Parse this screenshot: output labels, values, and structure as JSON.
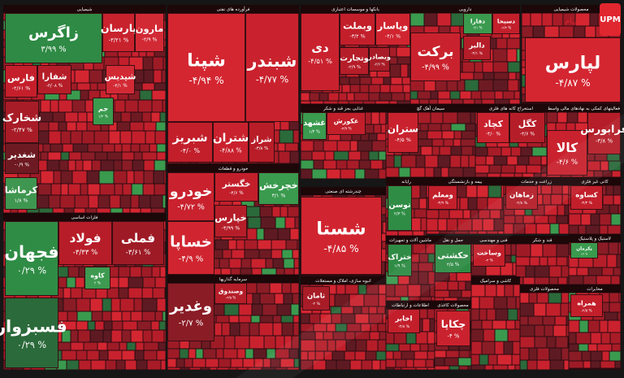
{
  "watermark": {
    "logo": "UPM",
    "text": "یوپی‌ام"
  },
  "sectors": [
    {
      "title": "شیمیایی",
      "tiles": [
        {
          "name": "زاگرس",
          "change": "۳/۹۹ %",
          "color": "#2e8a44"
        },
        {
          "name": "پارسان",
          "change": "-۳/۲۱ %",
          "color": "#c8222d"
        },
        {
          "name": "مارون",
          "change": "-۲/۹ %",
          "color": "#d22a35"
        },
        {
          "name": "فارس",
          "change": "-۲/۶۱ %",
          "color": "#c41f2b"
        },
        {
          "name": "شفارا",
          "change": "-۳/۰۸ %",
          "color": "#b51e29"
        },
        {
          "name": "شپدیس",
          "change": "-۴/۱ %",
          "color": "#d22a35"
        },
        {
          "name": "شخارک",
          "change": "-۲/۴۷ %",
          "color": "#a81c27"
        },
        {
          "name": "جم",
          "change": "۱/۲ %",
          "color": "#3a9a4e"
        },
        {
          "name": "شغدیر",
          "change": "-۰/۹ %",
          "color": "#6e1a22"
        },
        {
          "name": "کرماشا",
          "change": "۱/۸ %",
          "color": "#3f9650"
        }
      ]
    },
    {
      "title": "فلزات اساسی",
      "tiles": [
        {
          "name": "فجهان",
          "change": "۰/۲۹ %",
          "color": "#2f8c45"
        },
        {
          "name": "فسبزوار",
          "change": "۰/۲۹ %",
          "color": "#2b6a3a"
        },
        {
          "name": "فولاد",
          "change": "-۳/۳۳ %",
          "color": "#b71d28"
        },
        {
          "name": "فملی",
          "change": "-۳/۶۱ %",
          "color": "#9e1b26"
        },
        {
          "name": "کاوه",
          "change": "۲ %",
          "color": "#3d9a50"
        }
      ]
    },
    {
      "title": "فرآورده های نفتی",
      "tiles": [
        {
          "name": "شپنا",
          "change": "-۴/۹۴ %",
          "color": "#d42631"
        },
        {
          "name": "شبندر",
          "change": "-۴/۷۷ %",
          "color": "#c9222e"
        },
        {
          "name": "شبریز",
          "change": "-۴/۰ %",
          "color": "#c21f2b"
        },
        {
          "name": "شتران",
          "change": "-۴/۸۸ %",
          "color": "#c9222e"
        },
        {
          "name": "شراز",
          "change": "-۳/۸ %",
          "color": "#b81d28"
        }
      ]
    },
    {
      "title": "خودرو و قطعات",
      "tiles": [
        {
          "name": "خودرو",
          "change": "-۴/۷۲ %",
          "color": "#c9222e"
        },
        {
          "name": "خساپا",
          "change": "-۴/۹ %",
          "color": "#d02530"
        },
        {
          "name": "خگستر",
          "change": "-۴/۶ %",
          "color": "#c21f2b"
        },
        {
          "name": "خچرخش",
          "change": "۳/۱ %",
          "color": "#3a9a4e"
        },
        {
          "name": "خپارس",
          "change": "-۴/۹۹ %",
          "color": "#b51e29"
        }
      ]
    },
    {
      "title": "سرمایه گذاریها",
      "tiles": [
        {
          "name": "وغدیر",
          "change": "-۲/۷ %",
          "color": "#8a1c26"
        },
        {
          "name": "وصندوق",
          "change": "-۳/۵ %",
          "color": "#b51e29"
        }
      ]
    },
    {
      "title": "بانکها و موسسات اعتباری",
      "tiles": [
        {
          "name": "دی",
          "change": "-۴/۵۱ %",
          "color": "#c9222e"
        },
        {
          "name": "وبملت",
          "change": "-۳/۲ %",
          "color": "#c21f2b"
        },
        {
          "name": "وپاسار",
          "change": "-۴/۱ %",
          "color": "#d02530"
        },
        {
          "name": "وتجارت",
          "change": "-۲/۹ %",
          "color": "#b51e29"
        },
        {
          "name": "وبصادر",
          "change": "-۳/۶ %",
          "color": "#a81c27"
        }
      ]
    },
    {
      "title": "دارویی",
      "tiles": [
        {
          "name": "برکت",
          "change": "-۴/۹۹ %",
          "color": "#c9222e"
        },
        {
          "name": "دفارا",
          "change": "۲/۱ %",
          "color": "#3a9a4e"
        },
        {
          "name": "دسبحا",
          "change": "-۲/۴ %",
          "color": "#c21f2b"
        },
        {
          "name": "دالبر",
          "change": "-۳/۱ %",
          "color": "#b51e29"
        }
      ]
    },
    {
      "title": "محصولات شیمیایی",
      "tiles": [
        {
          "name": "لپارس",
          "change": "-۴/۸۷ %",
          "color": "#d42631"
        }
      ]
    },
    {
      "title": "غذایی بجز قند و شکر",
      "tiles": [
        {
          "name": "غشهد",
          "change": "۱/۴ %",
          "color": "#3a9a4e"
        },
        {
          "name": "غکورش",
          "change": "-۳/۹ %",
          "color": "#c21f2b"
        }
      ]
    },
    {
      "title": "سیمان آهک گچ",
      "tiles": [
        {
          "name": "ستران",
          "change": "-۴/۵ %",
          "color": "#c9222e"
        }
      ]
    },
    {
      "title": "استخراج کانه های فلزی",
      "tiles": [
        {
          "name": "کچاد",
          "change": "-۴/۰ %",
          "color": "#c9222e"
        },
        {
          "name": "کگل",
          "change": "-۳/۶ %",
          "color": "#b51e29"
        }
      ]
    },
    {
      "title": "فعالیتهای کمکی به نهادهای مالی واسط",
      "tiles": [
        {
          "name": "کالا",
          "change": "-۴/۶ %",
          "color": "#c9222e"
        },
        {
          "name": "فرابورس",
          "change": "-۳/۸ %",
          "color": "#b51e29"
        }
      ]
    },
    {
      "title": "چندرشته ای صنعتی",
      "tiles": [
        {
          "name": "شستا",
          "change": "-۴/۸۵ %",
          "color": "#d02530"
        }
      ]
    },
    {
      "title": "رایانه",
      "tiles": [
        {
          "name": "توسن",
          "change": "۲/۳ %",
          "color": "#2f8c45"
        }
      ]
    },
    {
      "title": "بیمه و بازنشستگی",
      "tiles": [
        {
          "name": "ومعلم",
          "change": "-۳/۹ %",
          "color": "#c21f2b"
        }
      ]
    },
    {
      "title": "زراعت و خدمات",
      "tiles": [
        {
          "name": "زماهان",
          "change": "-۲/۸ %",
          "color": "#b51e29"
        }
      ]
    },
    {
      "title": "کانی غیر فلزی",
      "tiles": [
        {
          "name": "کساوه",
          "change": "-۳/۳ %",
          "color": "#c21f2b"
        }
      ]
    },
    {
      "title": "ماشین آلات و تجهیزات",
      "tiles": [
        {
          "name": "ختراک",
          "change": "۱/۹ %",
          "color": "#2f8c45"
        }
      ]
    },
    {
      "title": "حمل و نقل",
      "tiles": [
        {
          "name": "حکشتی",
          "change": "۲/۵ %",
          "color": "#2f8c45"
        }
      ]
    },
    {
      "title": "فنی و مهندسی",
      "tiles": [
        {
          "name": "وساخت",
          "change": "-۳ %",
          "color": "#c21f2b"
        }
      ]
    },
    {
      "title": "قند و شکر",
      "tiles": []
    },
    {
      "title": "لاستیک و پلاستیک",
      "tiles": [
        {
          "name": "پکرمان",
          "change": "۱/۲ %",
          "color": "#3a9a4e"
        }
      ]
    },
    {
      "title": "انبوه سازی، املاک و مستغلات",
      "tiles": [
        {
          "name": "ثامان",
          "change": "-۲ %",
          "color": "#a81c27"
        }
      ]
    },
    {
      "title": "اطلاعات و ارتباطات",
      "tiles": [
        {
          "name": "اخابر",
          "change": "-۳/۸ %",
          "color": "#c21f2b"
        }
      ]
    },
    {
      "title": "محصولات کاغذی",
      "tiles": [
        {
          "name": "چکاپا",
          "change": "-۴ %",
          "color": "#c9222e"
        }
      ]
    },
    {
      "title": "کاشی و سرامیک",
      "tiles": []
    },
    {
      "title": "محصولات فلزی",
      "tiles": []
    },
    {
      "title": "مخابرات",
      "tiles": [
        {
          "name": "همراه",
          "change": "-۲/۵ %",
          "color": "#c21f2b"
        }
      ]
    }
  ]
}
